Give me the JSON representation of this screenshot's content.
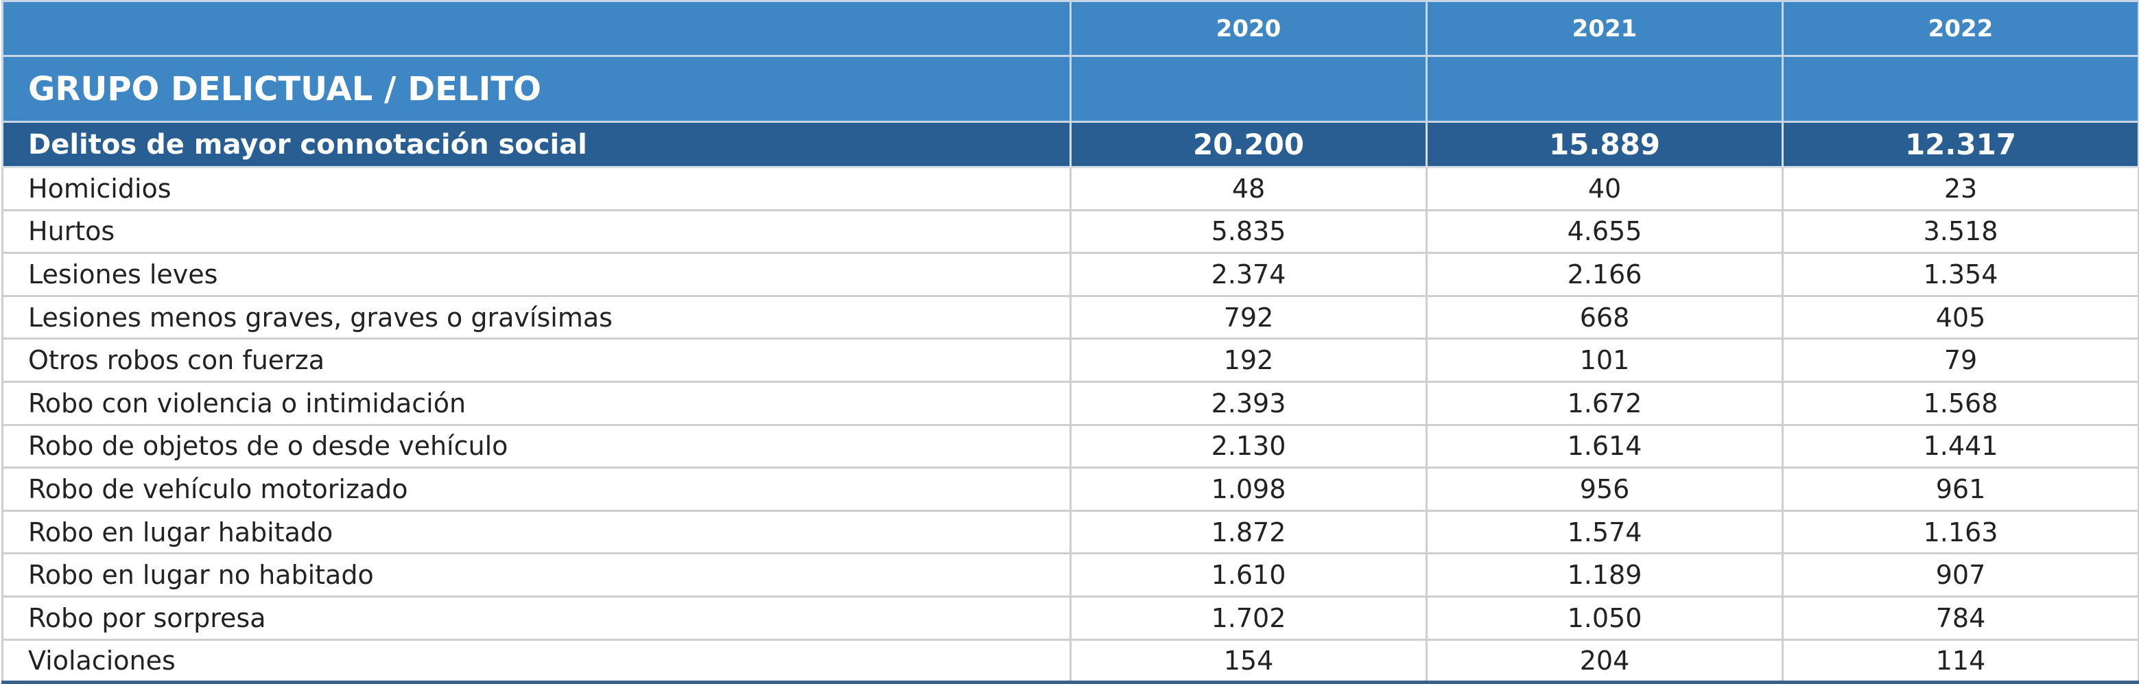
{
  "table": {
    "year_headers": [
      "2020",
      "2021",
      "2022"
    ],
    "group_header": "GRUPO DELICTUAL / DELITO",
    "total_row": {
      "label": "Delitos de mayor connotación social",
      "values": [
        "20.200",
        "15.889",
        "12.317"
      ]
    },
    "rows": [
      {
        "label": "Homicidios",
        "values": [
          "48",
          "40",
          "23"
        ]
      },
      {
        "label": "Hurtos",
        "values": [
          "5.835",
          "4.655",
          "3.518"
        ]
      },
      {
        "label": "Lesiones leves",
        "values": [
          "2.374",
          "2.166",
          "1.354"
        ]
      },
      {
        "label": "Lesiones menos graves, graves o gravísimas",
        "values": [
          "792",
          "668",
          "405"
        ]
      },
      {
        "label": "Otros robos con fuerza",
        "values": [
          "192",
          "101",
          "79"
        ]
      },
      {
        "label": "Robo con violencia o intimidación",
        "values": [
          "2.393",
          "1.672",
          "1.568"
        ]
      },
      {
        "label": "Robo de objetos de o desde vehículo",
        "values": [
          "2.130",
          "1.614",
          "1.441"
        ]
      },
      {
        "label": "Robo de vehículo motorizado",
        "values": [
          "1.098",
          "956",
          "961"
        ]
      },
      {
        "label": "Robo en lugar habitado",
        "values": [
          "1.872",
          "1.574",
          "1.163"
        ]
      },
      {
        "label": "Robo en lugar no habitado",
        "values": [
          "1.610",
          "1.189",
          "907"
        ]
      },
      {
        "label": "Robo por sorpresa",
        "values": [
          "1.702",
          "1.050",
          "784"
        ]
      },
      {
        "label": "Violaciones",
        "values": [
          "154",
          "204",
          "114"
        ]
      }
    ],
    "colors": {
      "header_bg": "#3e86c4",
      "total_bg": "#285e92",
      "grid": "#cfcfcf"
    }
  }
}
